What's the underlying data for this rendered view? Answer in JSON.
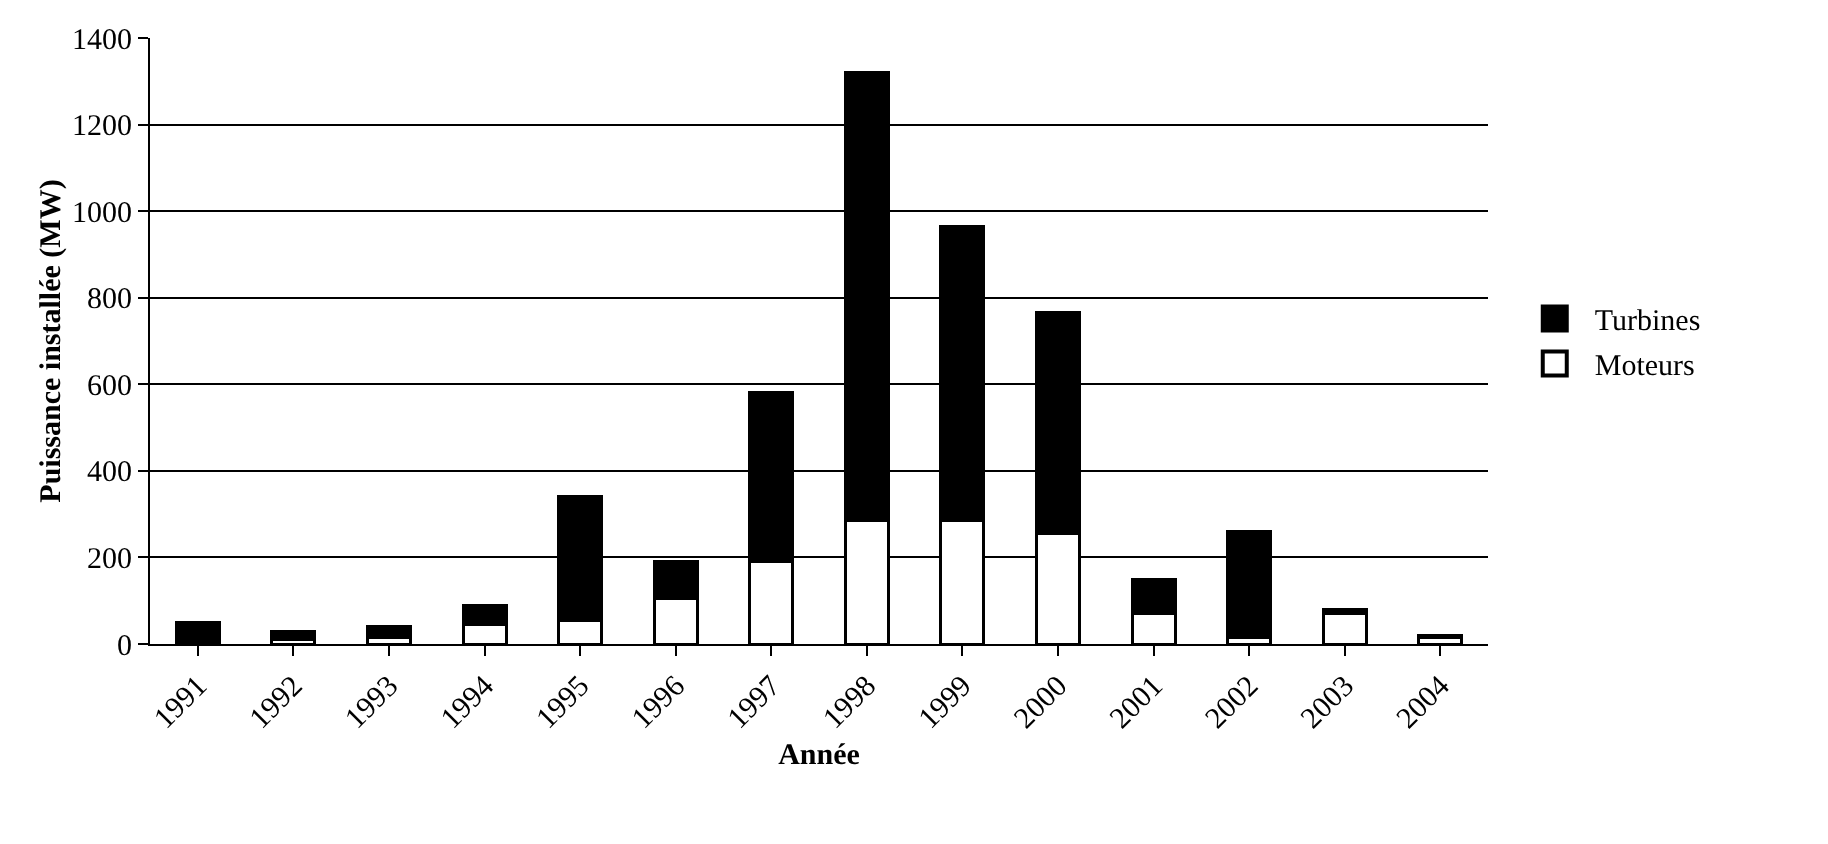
{
  "chart_data": {
    "type": "bar",
    "stacked": true,
    "xlabel": "Année",
    "ylabel": "Puissance installée (MW)",
    "categories": [
      "1991",
      "1992",
      "1993",
      "1994",
      "1995",
      "1996",
      "1997",
      "1998",
      "1999",
      "2000",
      "2001",
      "2002",
      "2003",
      "2004"
    ],
    "series": [
      {
        "name": "Moteurs",
        "color": "#ffffff",
        "values": [
          0,
          10,
          15,
          45,
          55,
          105,
          190,
          285,
          285,
          255,
          70,
          15,
          70,
          15
        ]
      },
      {
        "name": "Turbines",
        "color": "#000000",
        "values": [
          50,
          20,
          25,
          45,
          285,
          85,
          390,
          1035,
          680,
          510,
          80,
          245,
          10,
          5
        ]
      }
    ],
    "ylim": [
      0,
      1400
    ],
    "yticks": [
      0,
      200,
      400,
      600,
      800,
      1000,
      1200,
      1400
    ],
    "grid": "y",
    "legend": "right"
  }
}
